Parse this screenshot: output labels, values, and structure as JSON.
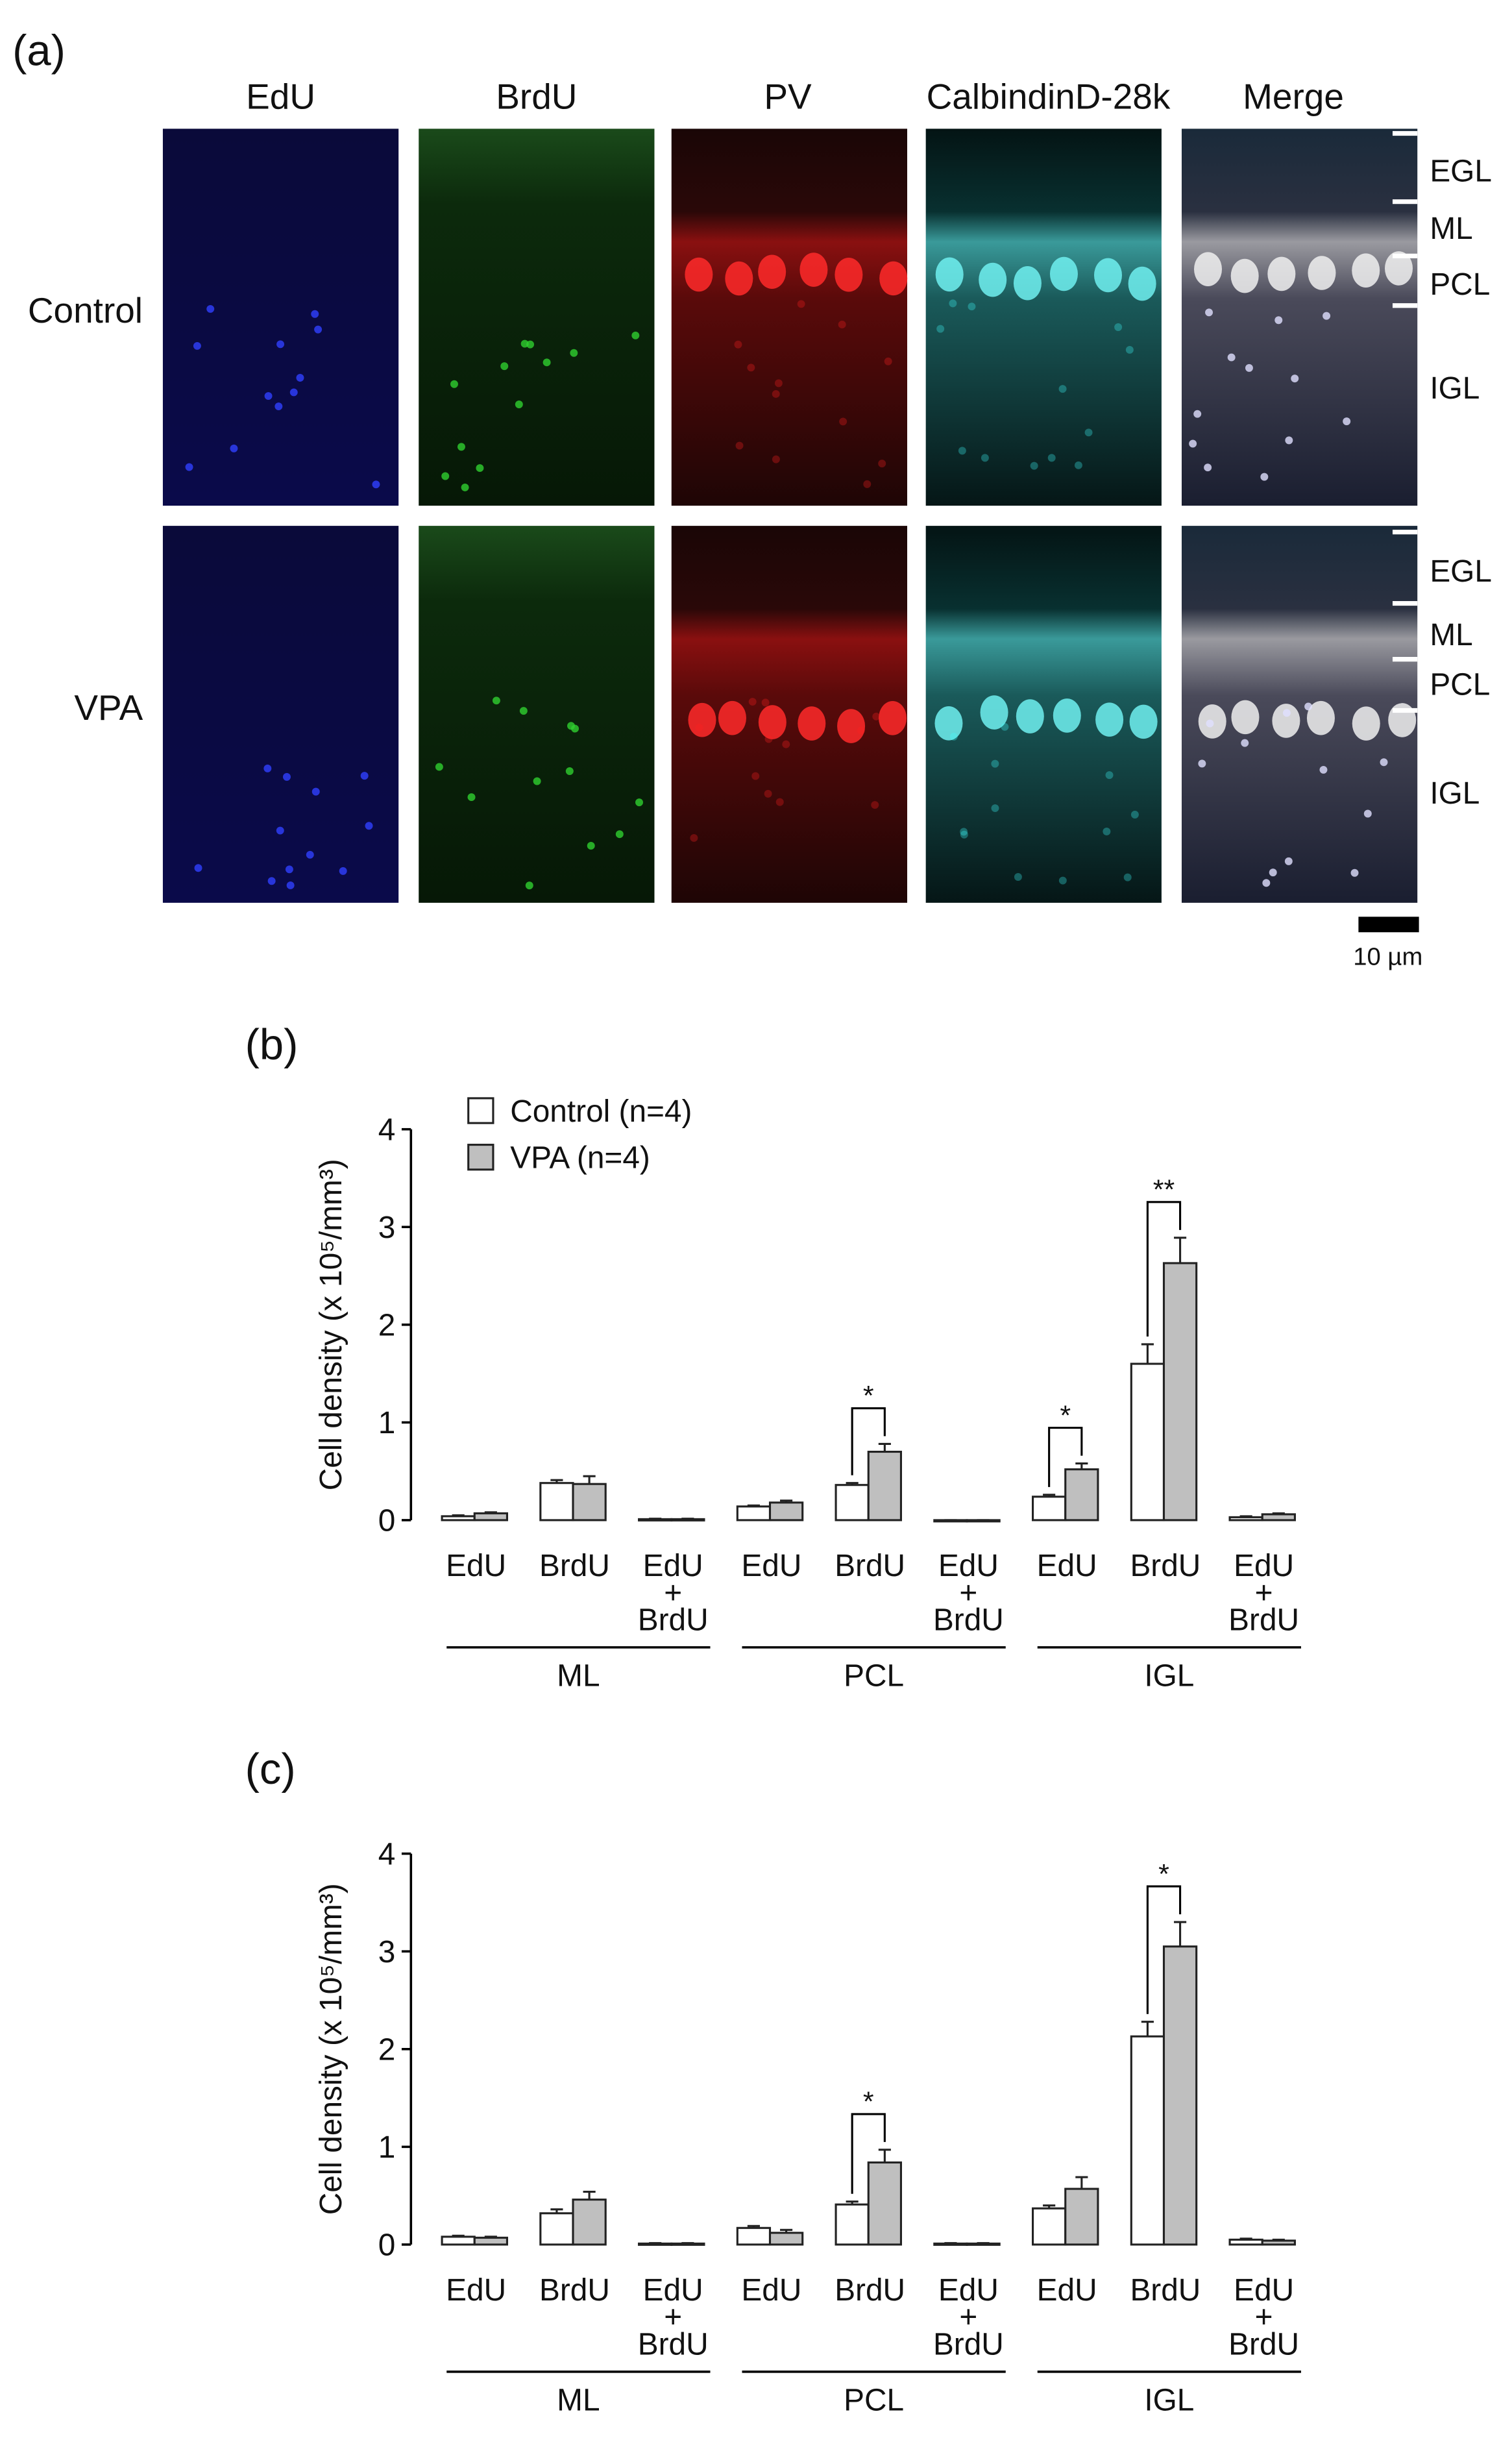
{
  "panel_a": {
    "label": "(a)",
    "columns": [
      "EdU",
      "BrdU",
      "PV",
      "CalbindinD-28k",
      "Merge"
    ],
    "rows": [
      "Control",
      "VPA"
    ],
    "layers": [
      "EGL",
      "ML",
      "PCL",
      "IGL"
    ],
    "scale_bar": "10 µm"
  },
  "chart_data": [
    {
      "type": "bar",
      "label": "(b)",
      "ylabel": "Cell density (x 10⁵/mm³)",
      "ylim": [
        0,
        4
      ],
      "yticks": [
        0,
        1,
        2,
        3,
        4
      ],
      "categories": [
        [
          "EdU"
        ],
        [
          "BrdU"
        ],
        [
          "EdU",
          "+",
          "BrdU"
        ],
        [
          "EdU"
        ],
        [
          "BrdU"
        ],
        [
          "EdU",
          "+",
          "BrdU"
        ],
        [
          "EdU"
        ],
        [
          "BrdU"
        ],
        [
          "EdU",
          "+",
          "BrdU"
        ]
      ],
      "groups": [
        "ML",
        "PCL",
        "IGL"
      ],
      "legend": "upper left",
      "series": [
        {
          "name": "Control (n=4)",
          "color": "#ffffff",
          "values": [
            0.04,
            0.38,
            0.01,
            0.14,
            0.36,
            0,
            0.24,
            1.6,
            0.03
          ],
          "errors": [
            0.01,
            0.03,
            0.005,
            0.01,
            0.02,
            0,
            0.02,
            0.2,
            0.01
          ]
        },
        {
          "name": "VPA (n=4)",
          "color": "#bfbfbf",
          "values": [
            0.07,
            0.37,
            0.01,
            0.18,
            0.7,
            0,
            0.52,
            2.63,
            0.06
          ],
          "errors": [
            0.01,
            0.08,
            0.005,
            0.02,
            0.08,
            0,
            0.06,
            0.26,
            0.01
          ]
        }
      ],
      "annotations": [
        {
          "category": 4,
          "text": "*"
        },
        {
          "category": 6,
          "text": "*"
        },
        {
          "category": 7,
          "text": "**"
        }
      ]
    },
    {
      "type": "bar",
      "label": "(c)",
      "ylabel": "Cell density (x 10⁵/mm³)",
      "ylim": [
        0,
        4
      ],
      "yticks": [
        0,
        1,
        2,
        3,
        4
      ],
      "categories": [
        [
          "EdU"
        ],
        [
          "BrdU"
        ],
        [
          "EdU",
          "+",
          "BrdU"
        ],
        [
          "EdU"
        ],
        [
          "BrdU"
        ],
        [
          "EdU",
          "+",
          "BrdU"
        ],
        [
          "EdU"
        ],
        [
          "BrdU"
        ],
        [
          "EdU",
          "+",
          "BrdU"
        ]
      ],
      "groups": [
        "ML",
        "PCL",
        "IGL"
      ],
      "series": [
        {
          "color": "#ffffff",
          "values": [
            0.08,
            0.32,
            0.01,
            0.17,
            0.41,
            0.01,
            0.37,
            2.13,
            0.05
          ],
          "errors": [
            0.01,
            0.04,
            0.005,
            0.02,
            0.03,
            0.005,
            0.03,
            0.15,
            0.01
          ]
        },
        {
          "color": "#bfbfbf",
          "values": [
            0.07,
            0.46,
            0.01,
            0.12,
            0.84,
            0.01,
            0.57,
            3.05,
            0.04
          ],
          "errors": [
            0.01,
            0.08,
            0.005,
            0.03,
            0.13,
            0.005,
            0.12,
            0.25,
            0.01
          ]
        }
      ],
      "annotations": [
        {
          "category": 4,
          "text": "*"
        },
        {
          "category": 7,
          "text": "*"
        }
      ]
    }
  ]
}
